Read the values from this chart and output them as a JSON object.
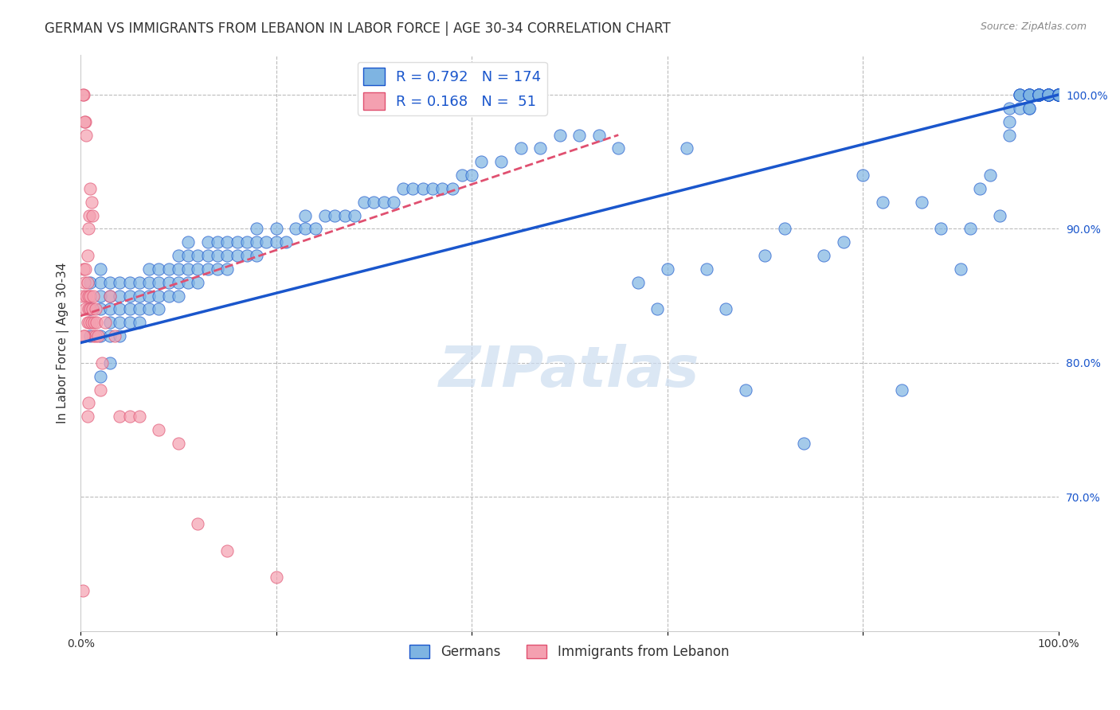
{
  "title": "GERMAN VS IMMIGRANTS FROM LEBANON IN LABOR FORCE | AGE 30-34 CORRELATION CHART",
  "source": "Source: ZipAtlas.com",
  "xlabel": "",
  "ylabel": "In Labor Force | Age 30-34",
  "xlim": [
    0.0,
    1.0
  ],
  "ylim": [
    0.6,
    1.03
  ],
  "xticks": [
    0.0,
    0.2,
    0.4,
    0.6,
    0.8,
    1.0
  ],
  "xticklabels": [
    "0.0%",
    "",
    "",
    "",
    "",
    "100.0%"
  ],
  "ytick_positions": [
    0.7,
    0.8,
    0.9,
    1.0
  ],
  "ytick_labels": [
    "70.0%",
    "80.0%",
    "90.0%",
    "100.0%"
  ],
  "blue_R": 0.792,
  "blue_N": 174,
  "pink_R": 0.168,
  "pink_N": 51,
  "blue_color": "#7EB4E2",
  "pink_color": "#F4A0B0",
  "blue_line_color": "#1A56CC",
  "pink_line_color": "#E05070",
  "watermark": "ZIPatlas",
  "legend_label_blue": "Germans",
  "legend_label_pink": "Immigrants from Lebanon",
  "title_fontsize": 12,
  "axis_label_fontsize": 11,
  "tick_fontsize": 10,
  "blue_scatter_x": [
    0.01,
    0.01,
    0.01,
    0.02,
    0.02,
    0.02,
    0.02,
    0.02,
    0.02,
    0.03,
    0.03,
    0.03,
    0.03,
    0.03,
    0.03,
    0.04,
    0.04,
    0.04,
    0.04,
    0.04,
    0.05,
    0.05,
    0.05,
    0.05,
    0.06,
    0.06,
    0.06,
    0.06,
    0.07,
    0.07,
    0.07,
    0.07,
    0.08,
    0.08,
    0.08,
    0.08,
    0.09,
    0.09,
    0.09,
    0.1,
    0.1,
    0.1,
    0.1,
    0.11,
    0.11,
    0.11,
    0.11,
    0.12,
    0.12,
    0.12,
    0.13,
    0.13,
    0.13,
    0.14,
    0.14,
    0.14,
    0.15,
    0.15,
    0.15,
    0.16,
    0.16,
    0.17,
    0.17,
    0.18,
    0.18,
    0.18,
    0.19,
    0.2,
    0.2,
    0.21,
    0.22,
    0.23,
    0.23,
    0.24,
    0.25,
    0.26,
    0.27,
    0.28,
    0.29,
    0.3,
    0.31,
    0.32,
    0.33,
    0.34,
    0.35,
    0.36,
    0.37,
    0.38,
    0.39,
    0.4,
    0.41,
    0.43,
    0.45,
    0.47,
    0.49,
    0.51,
    0.53,
    0.55,
    0.57,
    0.59,
    0.6,
    0.62,
    0.64,
    0.66,
    0.68,
    0.7,
    0.72,
    0.74,
    0.76,
    0.78,
    0.8,
    0.82,
    0.84,
    0.86,
    0.88,
    0.9,
    0.91,
    0.92,
    0.93,
    0.94,
    0.95,
    0.95,
    0.95,
    0.96,
    0.96,
    0.96,
    0.96,
    0.97,
    0.97,
    0.97,
    0.97,
    0.97,
    0.97,
    0.97,
    0.98,
    0.98,
    0.98,
    0.98,
    0.98,
    0.98,
    0.98,
    0.98,
    0.99,
    0.99,
    0.99,
    0.99,
    0.99,
    0.99,
    0.99,
    0.99,
    0.99,
    1.0,
    1.0,
    1.0,
    1.0,
    1.0,
    1.0,
    1.0,
    1.0,
    1.0,
    1.0,
    1.0,
    1.0,
    1.0,
    1.0,
    1.0,
    1.0,
    1.0,
    1.0,
    1.0,
    1.0,
    1.0,
    1.0,
    1.0,
    1.0,
    1.0,
    1.0,
    1.0,
    1.0,
    1.0
  ],
  "blue_scatter_y": [
    0.82,
    0.84,
    0.86,
    0.79,
    0.82,
    0.84,
    0.85,
    0.86,
    0.87,
    0.8,
    0.82,
    0.83,
    0.84,
    0.85,
    0.86,
    0.82,
    0.83,
    0.84,
    0.85,
    0.86,
    0.83,
    0.84,
    0.85,
    0.86,
    0.83,
    0.84,
    0.85,
    0.86,
    0.84,
    0.85,
    0.86,
    0.87,
    0.84,
    0.85,
    0.86,
    0.87,
    0.85,
    0.86,
    0.87,
    0.85,
    0.86,
    0.87,
    0.88,
    0.86,
    0.87,
    0.88,
    0.89,
    0.86,
    0.87,
    0.88,
    0.87,
    0.88,
    0.89,
    0.87,
    0.88,
    0.89,
    0.87,
    0.88,
    0.89,
    0.88,
    0.89,
    0.88,
    0.89,
    0.88,
    0.89,
    0.9,
    0.89,
    0.89,
    0.9,
    0.89,
    0.9,
    0.9,
    0.91,
    0.9,
    0.91,
    0.91,
    0.91,
    0.91,
    0.92,
    0.92,
    0.92,
    0.92,
    0.93,
    0.93,
    0.93,
    0.93,
    0.93,
    0.93,
    0.94,
    0.94,
    0.95,
    0.95,
    0.96,
    0.96,
    0.97,
    0.97,
    0.97,
    0.96,
    0.86,
    0.84,
    0.87,
    0.96,
    0.87,
    0.84,
    0.78,
    0.88,
    0.9,
    0.74,
    0.88,
    0.89,
    0.94,
    0.92,
    0.78,
    0.92,
    0.9,
    0.87,
    0.9,
    0.93,
    0.94,
    0.91,
    0.98,
    0.97,
    0.99,
    0.99,
    1.0,
    1.0,
    1.0,
    0.99,
    1.0,
    0.99,
    1.0,
    1.0,
    1.0,
    1.0,
    1.0,
    1.0,
    1.0,
    1.0,
    1.0,
    1.0,
    1.0,
    1.0,
    1.0,
    1.0,
    1.0,
    1.0,
    1.0,
    1.0,
    1.0,
    1.0,
    1.0,
    1.0,
    1.0,
    1.0,
    1.0,
    1.0,
    1.0,
    1.0,
    1.0,
    1.0,
    1.0,
    1.0,
    1.0,
    1.0,
    1.0,
    1.0,
    1.0,
    1.0,
    1.0,
    1.0,
    1.0,
    1.0,
    1.0,
    1.0,
    1.0,
    1.0,
    1.0,
    1.0,
    1.0,
    1.0
  ],
  "pink_scatter_x": [
    0.002,
    0.003,
    0.004,
    0.005,
    0.005,
    0.006,
    0.007,
    0.007,
    0.008,
    0.008,
    0.009,
    0.01,
    0.01,
    0.011,
    0.012,
    0.013,
    0.013,
    0.014,
    0.015,
    0.015,
    0.016,
    0.018,
    0.02,
    0.022,
    0.025,
    0.03,
    0.035,
    0.04,
    0.05,
    0.06,
    0.08,
    0.1,
    0.12,
    0.15,
    0.2,
    0.007,
    0.008,
    0.009,
    0.01,
    0.011,
    0.012,
    0.006,
    0.005,
    0.004,
    0.003,
    0.002,
    0.007,
    0.008,
    0.004,
    0.003,
    0.002
  ],
  "pink_scatter_y": [
    0.85,
    0.87,
    0.86,
    0.84,
    0.87,
    0.85,
    0.83,
    0.86,
    0.84,
    0.85,
    0.83,
    0.85,
    0.84,
    0.83,
    0.84,
    0.85,
    0.82,
    0.83,
    0.82,
    0.84,
    0.83,
    0.82,
    0.78,
    0.8,
    0.83,
    0.85,
    0.82,
    0.76,
    0.76,
    0.76,
    0.75,
    0.74,
    0.68,
    0.66,
    0.64,
    0.88,
    0.9,
    0.91,
    0.93,
    0.92,
    0.91,
    0.97,
    0.98,
    0.98,
    1.0,
    1.0,
    0.76,
    0.77,
    0.82,
    0.82,
    0.63
  ]
}
